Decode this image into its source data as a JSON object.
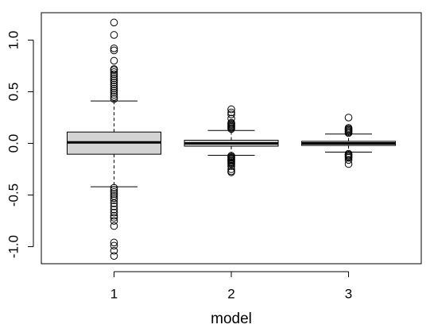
{
  "chart_data": {
    "type": "box",
    "x_label": "model",
    "categories": [
      "1",
      "2",
      "3"
    ],
    "box_color": "#d3d3d3",
    "ylim": [
      -1.165,
      1.265
    ],
    "yticks": [
      {
        "value": -1,
        "label": "-1.0"
      },
      {
        "value": -0.5,
        "label": "-0.5"
      },
      {
        "value": 0,
        "label": "0.0"
      },
      {
        "value": 0.5,
        "label": "0.5"
      },
      {
        "value": 1,
        "label": "1.0"
      }
    ],
    "boxes": [
      {
        "whisker_low": -0.42,
        "q1": -0.105,
        "median": 0.01,
        "q3": 0.11,
        "whisker_high": 0.41,
        "outliers": [
          0.43,
          0.45,
          0.47,
          0.49,
          0.51,
          0.53,
          0.55,
          0.57,
          0.59,
          0.61,
          0.63,
          0.65,
          0.67,
          0.69,
          0.71,
          0.72,
          0.8,
          0.9,
          0.92,
          1.05,
          1.17,
          -0.43,
          -0.45,
          -0.47,
          -0.49,
          -0.51,
          -0.53,
          -0.55,
          -0.58,
          -0.61,
          -0.64,
          -0.67,
          -0.7,
          -0.72,
          -0.75,
          -0.8,
          -0.96,
          -0.99,
          -1.04,
          -1.09
        ]
      },
      {
        "whisker_low": -0.115,
        "q1": -0.027,
        "median": 0.0,
        "q3": 0.03,
        "whisker_high": 0.125,
        "outliers": [
          0.14,
          0.15,
          0.16,
          0.17,
          0.18,
          0.19,
          0.2,
          0.24,
          0.28,
          0.3,
          0.33,
          -0.12,
          -0.13,
          -0.14,
          -0.15,
          -0.16,
          -0.17,
          -0.18,
          -0.19,
          -0.2,
          -0.22,
          -0.25,
          -0.27,
          -0.28
        ]
      },
      {
        "whisker_low": -0.085,
        "q1": -0.02,
        "median": 0.0,
        "q3": 0.02,
        "whisker_high": 0.09,
        "outliers": [
          0.1,
          0.11,
          0.12,
          0.13,
          0.14,
          0.15,
          0.25,
          -0.1,
          -0.11,
          -0.12,
          -0.13,
          -0.14,
          -0.16,
          -0.2
        ]
      }
    ]
  }
}
